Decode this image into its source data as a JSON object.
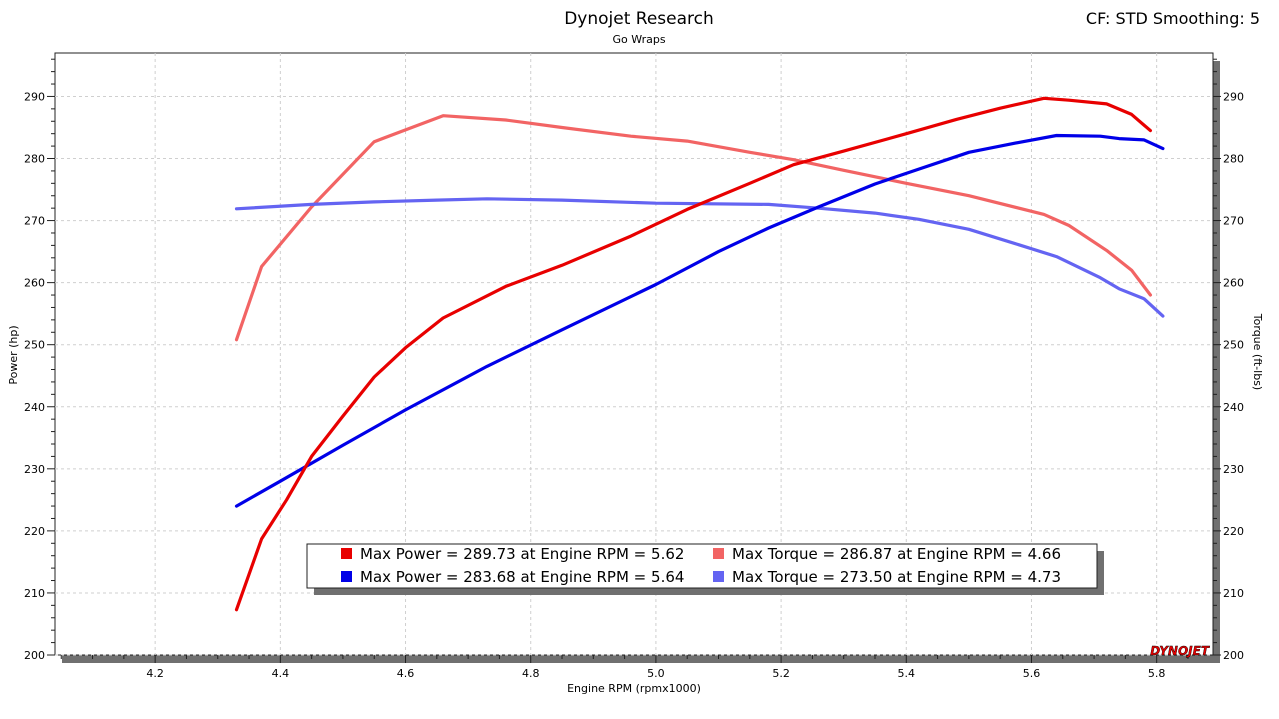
{
  "header": {
    "title": "Dynojet Research",
    "subtitle": "Go Wraps",
    "cf_text": "CF: STD Smoothing: 5"
  },
  "logo": "DYNOJET",
  "chart_data": {
    "type": "line",
    "xlabel": "Engine RPM (rpmx1000)",
    "ylabel_left": "Power (hp)",
    "ylabel_right": "Torque (ft-lbs)",
    "xlim": [
      4.04,
      5.89
    ],
    "ylim": [
      200,
      297
    ],
    "x_ticks": [
      4.2,
      4.4,
      4.6,
      4.8,
      5.0,
      5.2,
      5.4,
      5.6,
      5.8
    ],
    "y_ticks": [
      200,
      210,
      220,
      230,
      240,
      250,
      260,
      270,
      280,
      290
    ],
    "grid": true,
    "legend_position": "bottom-center",
    "series": [
      {
        "name": "Max Power = 289.73 at Engine RPM = 5.62",
        "color": "#e80000",
        "x": [
          4.33,
          4.37,
          4.41,
          4.45,
          4.5,
          4.55,
          4.6,
          4.66,
          4.76,
          4.85,
          4.96,
          5.05,
          5.15,
          5.22,
          5.3,
          5.4,
          5.48,
          5.55,
          5.62,
          5.66,
          5.72,
          5.76,
          5.79
        ],
        "values": [
          207.3,
          218.7,
          225.0,
          232.0,
          238.5,
          244.8,
          249.5,
          254.3,
          259.4,
          262.8,
          267.5,
          271.8,
          276.0,
          279.0,
          281.2,
          284.0,
          286.3,
          288.1,
          289.7,
          289.4,
          288.8,
          287.1,
          284.5
        ]
      },
      {
        "name": "Max Power = 283.68 at Engine RPM = 5.64",
        "color": "#0000e8",
        "x": [
          4.33,
          4.4,
          4.5,
          4.6,
          4.73,
          4.85,
          5.0,
          5.1,
          5.18,
          5.26,
          5.35,
          5.42,
          5.5,
          5.58,
          5.64,
          5.71,
          5.74,
          5.78,
          5.81
        ],
        "values": [
          224.0,
          228.0,
          233.8,
          239.5,
          246.5,
          252.4,
          259.7,
          265.0,
          268.8,
          272.2,
          275.9,
          278.3,
          281.0,
          282.6,
          283.7,
          283.6,
          283.2,
          283.0,
          281.6
        ]
      },
      {
        "name": "Max Torque = 286.87 at Engine RPM = 4.66",
        "color": "#f26464",
        "x": [
          4.33,
          4.37,
          4.45,
          4.55,
          4.66,
          4.76,
          4.85,
          4.96,
          5.05,
          5.15,
          5.22,
          5.3,
          5.4,
          5.5,
          5.62,
          5.66,
          5.72,
          5.76,
          5.79
        ],
        "values": [
          250.8,
          262.6,
          272.2,
          282.7,
          286.9,
          286.2,
          285.0,
          283.6,
          282.8,
          281.0,
          279.8,
          278.1,
          276.0,
          274.0,
          271.0,
          269.2,
          265.2,
          262.0,
          258.0
        ]
      },
      {
        "name": "Max Torque = 273.50 at Engine RPM = 4.73",
        "color": "#6464f2",
        "x": [
          4.33,
          4.45,
          4.55,
          4.65,
          4.73,
          4.85,
          5.0,
          5.18,
          5.26,
          5.35,
          5.42,
          5.5,
          5.58,
          5.64,
          5.71,
          5.74,
          5.78,
          5.81
        ],
        "values": [
          271.9,
          272.6,
          273.0,
          273.3,
          273.5,
          273.3,
          272.8,
          272.6,
          272.0,
          271.2,
          270.2,
          268.6,
          266.1,
          264.2,
          260.8,
          259.0,
          257.4,
          254.6
        ]
      }
    ]
  }
}
